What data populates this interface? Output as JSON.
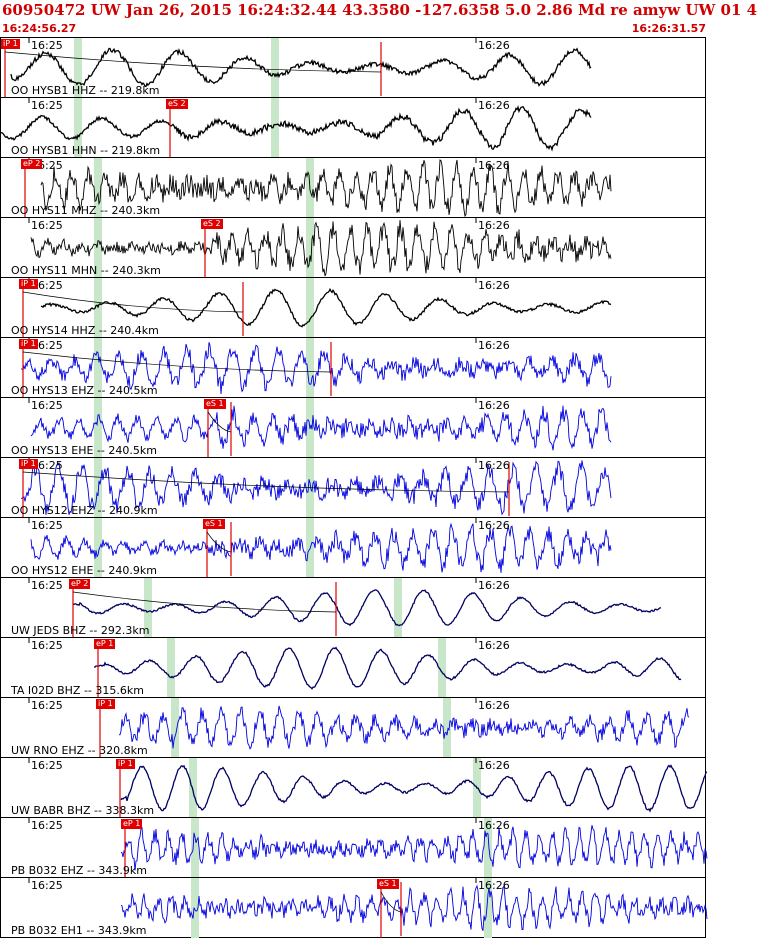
{
  "header": {
    "title": "60950472 UW Jan 26, 2015 16:24:32.44   43.3580 -127.6358  5.0 2.86 Md re amyw UW 01    4",
    "start_time": "16:24:56.27",
    "end_time": "16:26:31.57"
  },
  "colors": {
    "header_text": "#d00000",
    "pick": "#e00000",
    "velocity_trace": "#000000",
    "accel_trace": "#0000e0",
    "strong_trace": "#000060",
    "window": "#c8e6c8"
  },
  "time_ticks": {
    "t1625": "16:25",
    "t1626": "16:26"
  },
  "panels": [
    {
      "label": "OO HYSB1 HHZ -- 219.8km",
      "pick": "iP 1",
      "color": "#000000"
    },
    {
      "label": "OO HYSB1 HHN -- 219.8km",
      "pick": "eS 2",
      "color": "#000000"
    },
    {
      "label": "OO HYS11 MHZ -- 240.3km",
      "pick": "eP 2",
      "color": "#000000"
    },
    {
      "label": "OO HYS11 MHN -- 240.3km",
      "pick": "eS 2",
      "color": "#000000"
    },
    {
      "label": "OO HYS14 HHZ -- 240.4km",
      "pick": "iP 1",
      "color": "#000000"
    },
    {
      "label": "OO HYS13 EHZ -- 240.5km",
      "pick": "iP 1",
      "color": "#0000e0"
    },
    {
      "label": "OO HYS13 EHE -- 240.5km",
      "pick": "eS 1",
      "color": "#0000e0"
    },
    {
      "label": "OO HYS12 EHZ -- 240.9km",
      "pick": "iP 1",
      "color": "#0000e0"
    },
    {
      "label": "OO HYS12 EHE -- 240.9km",
      "pick": "eS 1",
      "color": "#0000e0"
    },
    {
      "label": "UW JEDS BHZ -- 292.3km",
      "pick": "eP 2",
      "color": "#000060"
    },
    {
      "label": "TA I02D BHZ -- 315.6km",
      "pick": "eP 1",
      "color": "#000060"
    },
    {
      "label": "UW RNO EHZ -- 320.8km",
      "pick": "iP 1",
      "color": "#0000e0"
    },
    {
      "label": "UW BABR BHZ -- 338.3km",
      "pick": "iP 1",
      "color": "#000060"
    },
    {
      "label": "PB B032 EHZ -- 343.9km",
      "pick": "eP 1",
      "color": "#0000e0"
    },
    {
      "label": "PB B032 EH1 -- 343.9km",
      "pick": "eS 1",
      "color": "#0000e0"
    }
  ]
}
